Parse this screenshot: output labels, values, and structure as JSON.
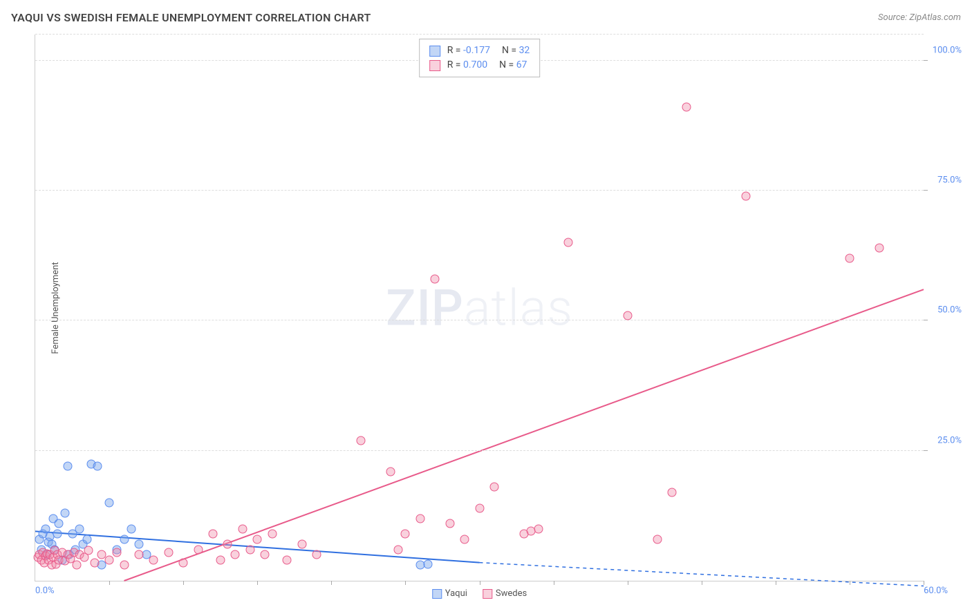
{
  "header": {
    "title": "YAQUI VS SWEDISH FEMALE UNEMPLOYMENT CORRELATION CHART",
    "source": "Source: ZipAtlas.com"
  },
  "watermark": {
    "zip": "ZIP",
    "atlas": "atlas"
  },
  "chart": {
    "type": "scatter",
    "xlim": [
      0,
      60
    ],
    "ylim": [
      0,
      105
    ],
    "yaxis_title": "Female Unemployment",
    "xticks_label_left": "0.0%",
    "xticks_label_right": "60.0%",
    "yticks": [
      {
        "v": 25,
        "label": "25.0%"
      },
      {
        "v": 50,
        "label": "50.0%"
      },
      {
        "v": 75,
        "label": "75.0%"
      },
      {
        "v": 100,
        "label": "100.0%"
      }
    ],
    "xtick_positions": [
      5,
      10,
      15,
      20,
      25,
      30,
      35,
      40,
      45,
      50,
      55,
      60
    ],
    "background_color": "#ffffff",
    "grid_color": "#dddddd",
    "series": [
      {
        "name": "Yaqui",
        "marker_fill": "rgba(120,165,235,0.45)",
        "marker_stroke": "#5b8def",
        "marker_size": 13,
        "trend": {
          "x1": 0,
          "y1": 9.5,
          "x2": 30,
          "y2": 3.5,
          "dash_from_x": 30,
          "dash_to_x": 60,
          "dash_to_y": -1,
          "color": "#2f6fe0",
          "width": 2
        },
        "points": [
          [
            0.3,
            8
          ],
          [
            0.4,
            6
          ],
          [
            0.5,
            9
          ],
          [
            0.7,
            10
          ],
          [
            0.8,
            5
          ],
          [
            0.9,
            7.5
          ],
          [
            1.0,
            8.5
          ],
          [
            1.1,
            7
          ],
          [
            1.2,
            12
          ],
          [
            1.3,
            6
          ],
          [
            1.5,
            9
          ],
          [
            1.6,
            11
          ],
          [
            1.8,
            4
          ],
          [
            2.0,
            13
          ],
          [
            2.2,
            22
          ],
          [
            2.3,
            5
          ],
          [
            2.5,
            9
          ],
          [
            2.7,
            6
          ],
          [
            3.0,
            10
          ],
          [
            3.2,
            7
          ],
          [
            3.5,
            8
          ],
          [
            3.8,
            22.5
          ],
          [
            4.2,
            22
          ],
          [
            4.5,
            3
          ],
          [
            5.0,
            15
          ],
          [
            5.5,
            6
          ],
          [
            6.0,
            8
          ],
          [
            6.5,
            10
          ],
          [
            7.0,
            7
          ],
          [
            7.5,
            5
          ],
          [
            26,
            3
          ],
          [
            26.5,
            3.2
          ]
        ]
      },
      {
        "name": "Swedes",
        "marker_fill": "rgba(240,140,170,0.4)",
        "marker_stroke": "#e85a8a",
        "marker_size": 13,
        "trend": {
          "x1": 6,
          "y1": 0,
          "x2": 60,
          "y2": 56,
          "color": "#e85a8a",
          "width": 2
        },
        "points": [
          [
            0.2,
            4.5
          ],
          [
            0.3,
            5
          ],
          [
            0.4,
            4
          ],
          [
            0.5,
            5.5
          ],
          [
            0.6,
            3.5
          ],
          [
            0.7,
            4.8
          ],
          [
            0.8,
            5.2
          ],
          [
            0.9,
            4
          ],
          [
            1.0,
            5
          ],
          [
            1.1,
            3
          ],
          [
            1.2,
            4.5
          ],
          [
            1.3,
            5.8
          ],
          [
            1.4,
            3.2
          ],
          [
            1.5,
            5
          ],
          [
            1.6,
            4
          ],
          [
            1.8,
            5.5
          ],
          [
            2.0,
            3.8
          ],
          [
            2.2,
            5
          ],
          [
            2.4,
            4.2
          ],
          [
            2.6,
            5.5
          ],
          [
            2.8,
            3
          ],
          [
            3.0,
            5
          ],
          [
            3.3,
            4.5
          ],
          [
            3.6,
            5.8
          ],
          [
            4.0,
            3.5
          ],
          [
            4.5,
            5
          ],
          [
            5.0,
            4
          ],
          [
            5.5,
            5.5
          ],
          [
            6.0,
            3
          ],
          [
            7.0,
            5
          ],
          [
            8.0,
            4
          ],
          [
            9.0,
            5.5
          ],
          [
            10.0,
            3.5
          ],
          [
            11.0,
            6
          ],
          [
            12.0,
            9
          ],
          [
            12.5,
            4
          ],
          [
            13.0,
            7
          ],
          [
            13.5,
            5
          ],
          [
            14.0,
            10
          ],
          [
            14.5,
            6
          ],
          [
            15.0,
            8
          ],
          [
            15.5,
            5
          ],
          [
            16.0,
            9
          ],
          [
            17.0,
            4
          ],
          [
            18.0,
            7
          ],
          [
            19.0,
            5
          ],
          [
            22.0,
            27
          ],
          [
            24.0,
            21
          ],
          [
            24.5,
            6
          ],
          [
            25.0,
            9
          ],
          [
            26.0,
            12
          ],
          [
            27.0,
            58
          ],
          [
            28.0,
            11
          ],
          [
            29.0,
            8
          ],
          [
            30.0,
            14
          ],
          [
            31.0,
            18
          ],
          [
            33.0,
            9
          ],
          [
            34.0,
            10
          ],
          [
            36.0,
            65
          ],
          [
            40.0,
            51
          ],
          [
            42.0,
            8
          ],
          [
            43.0,
            17
          ],
          [
            44.0,
            91
          ],
          [
            48.0,
            74
          ],
          [
            55.0,
            62
          ],
          [
            57.0,
            64
          ],
          [
            33.5,
            9.5
          ]
        ]
      }
    ],
    "legend_top": {
      "rows": [
        {
          "sq_fill": "rgba(120,165,235,0.45)",
          "sq_stroke": "#5b8def",
          "r_label": "R =",
          "r_val": "-0.177",
          "n_label": "N =",
          "n_val": "32"
        },
        {
          "sq_fill": "rgba(240,140,170,0.4)",
          "sq_stroke": "#e85a8a",
          "r_label": "R =",
          "r_val": "0.700",
          "n_label": "N =",
          "n_val": "67"
        }
      ]
    },
    "legend_bottom": [
      {
        "sq_fill": "rgba(120,165,235,0.45)",
        "sq_stroke": "#5b8def",
        "label": "Yaqui"
      },
      {
        "sq_fill": "rgba(240,140,170,0.4)",
        "sq_stroke": "#e85a8a",
        "label": "Swedes"
      }
    ]
  }
}
